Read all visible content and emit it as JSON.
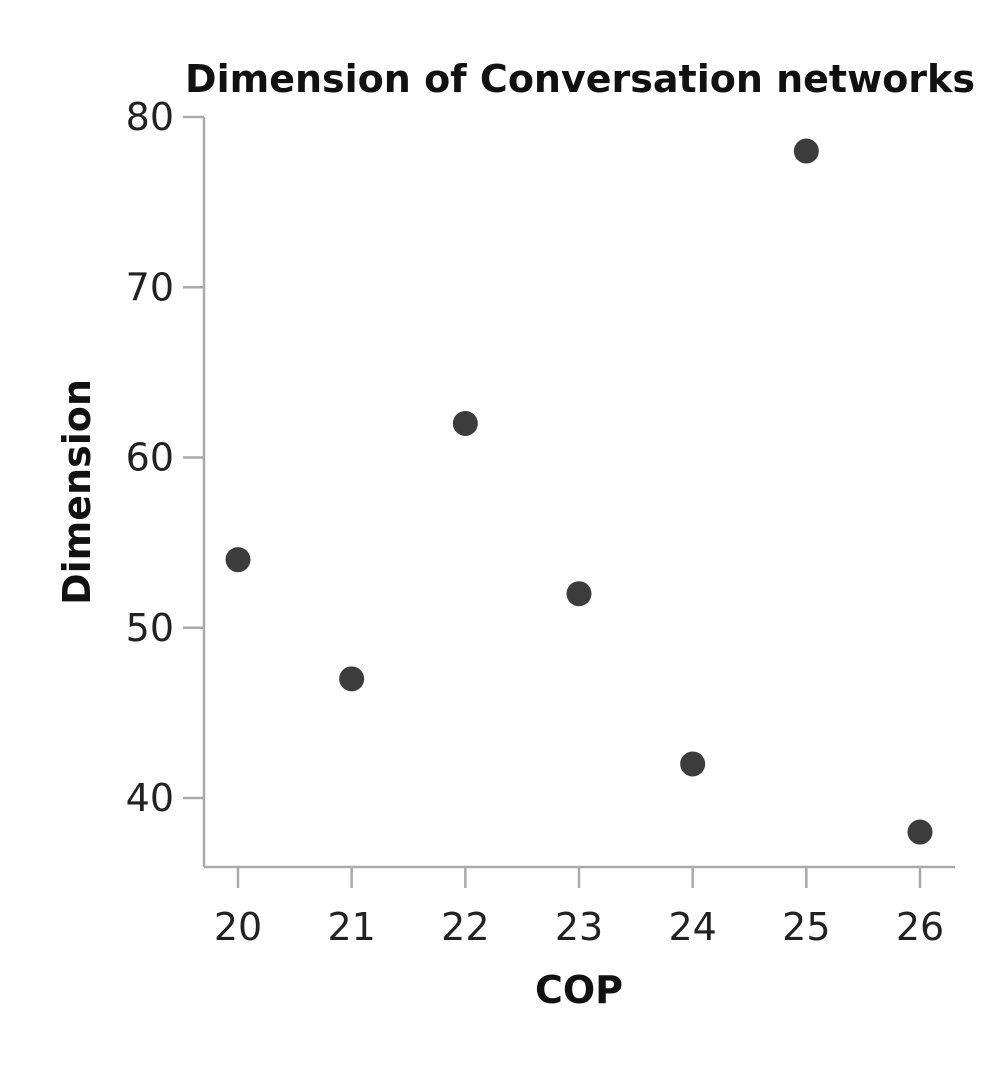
{
  "chart_data": {
    "type": "scatter",
    "title": "Dimension of Conversation networks",
    "xlabel": "COP",
    "ylabel": "Dimension",
    "x": [
      20,
      21,
      22,
      23,
      24,
      25,
      26
    ],
    "y": [
      54,
      47,
      62,
      52,
      42,
      78,
      38
    ],
    "xlim": [
      19.7,
      26.3
    ],
    "ylim": [
      36,
      80
    ],
    "xticks": [
      20,
      21,
      22,
      23,
      24,
      25,
      26
    ],
    "yticks": [
      40,
      50,
      60,
      70,
      80
    ],
    "grid": false,
    "point_color": "#3c3c3c",
    "axis_color": "#aaaaaa"
  }
}
